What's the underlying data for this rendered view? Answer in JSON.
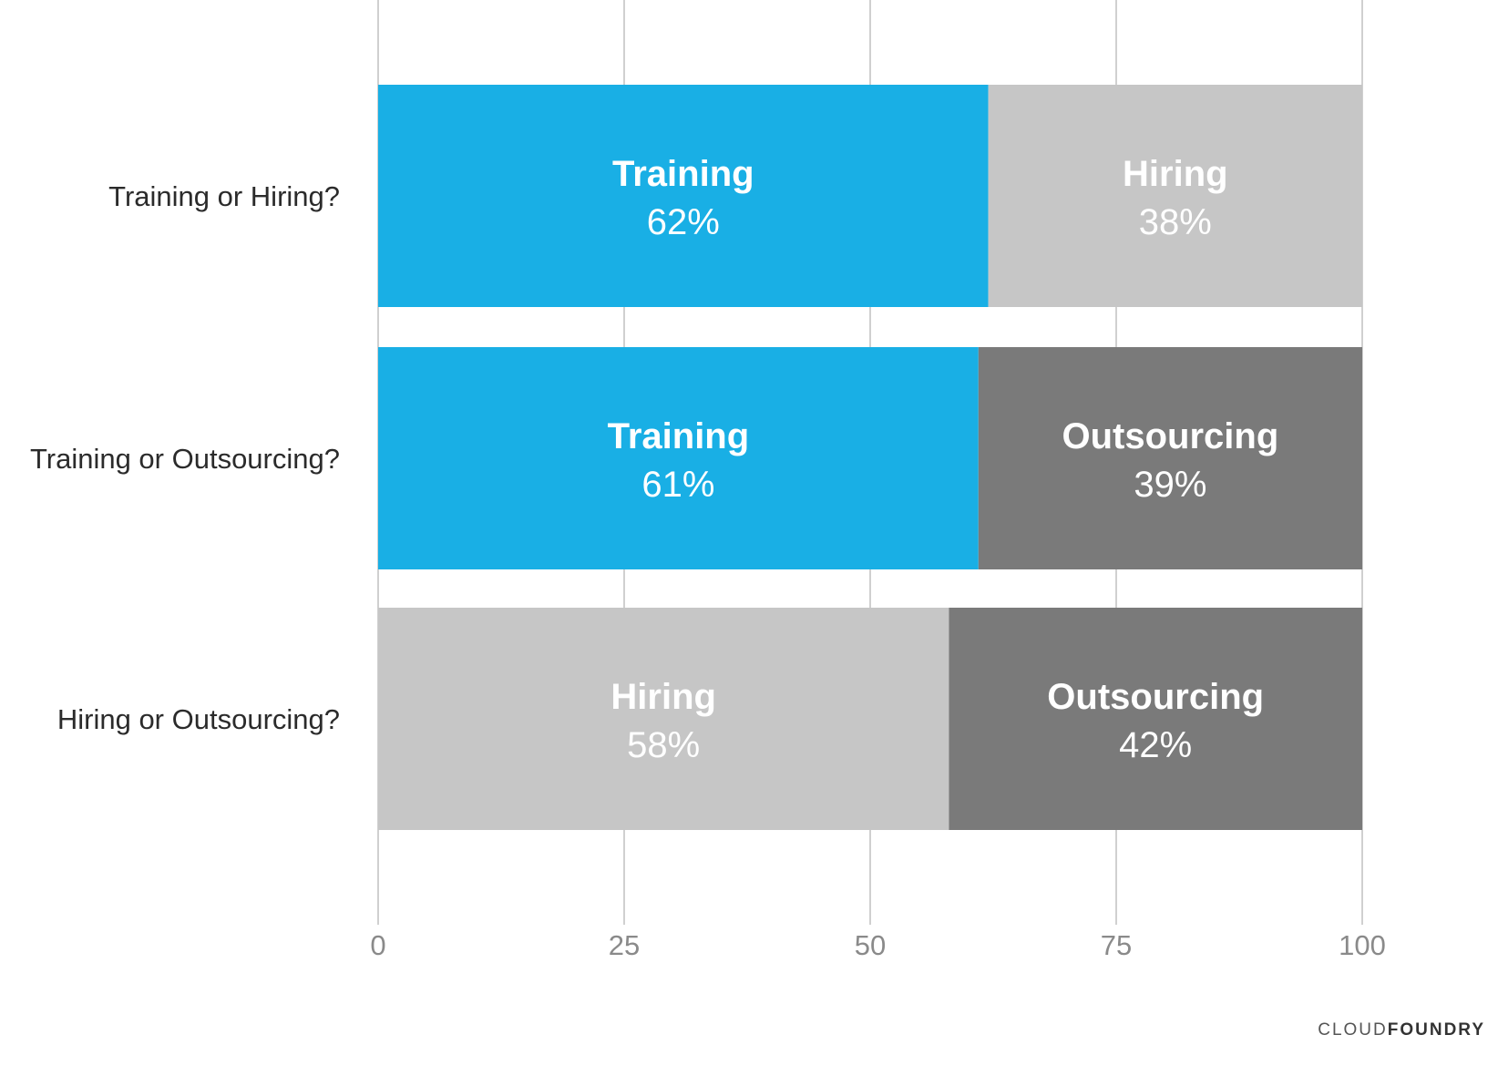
{
  "chart_data": {
    "type": "bar",
    "orientation": "horizontal",
    "stacked": true,
    "categories": [
      "Training or Hiring?",
      "Training or Outsourcing?",
      "Hiring or Outsourcing?"
    ],
    "bars": [
      {
        "category": "Training or Hiring?",
        "segments": [
          {
            "label": "Training",
            "value": 62,
            "value_label": "62%",
            "color": "#19afe5"
          },
          {
            "label": "Hiring",
            "value": 38,
            "value_label": "38%",
            "color": "#c6c6c6"
          }
        ]
      },
      {
        "category": "Training or Outsourcing?",
        "segments": [
          {
            "label": "Training",
            "value": 61,
            "value_label": "61%",
            "color": "#19afe5"
          },
          {
            "label": "Outsourcing",
            "value": 39,
            "value_label": "39%",
            "color": "#7a7a7a"
          }
        ]
      },
      {
        "category": "Hiring or Outsourcing?",
        "segments": [
          {
            "label": "Hiring",
            "value": 58,
            "value_label": "58%",
            "color": "#c6c6c6"
          },
          {
            "label": "Outsourcing",
            "value": 42,
            "value_label": "42%",
            "color": "#7a7a7a"
          }
        ]
      }
    ],
    "xlim": [
      0,
      100
    ],
    "xticks": [
      0,
      25,
      50,
      75,
      100
    ],
    "xtick_labels": [
      "0",
      "25",
      "50",
      "75",
      "100"
    ],
    "grid": "vertical",
    "title": "",
    "xlabel": "",
    "ylabel": ""
  },
  "branding": {
    "logo_prefix": "CLOUD",
    "logo_suffix": "FOUNDRY"
  }
}
